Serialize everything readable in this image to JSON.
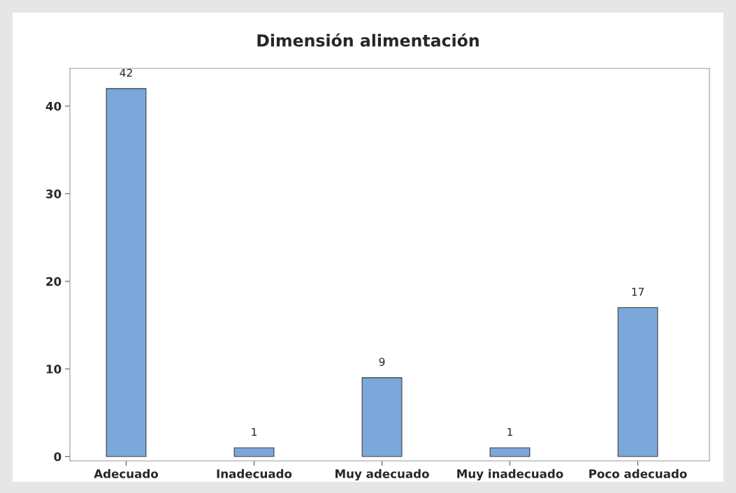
{
  "chart_data": {
    "type": "bar",
    "title": "Dimensión alimentación",
    "categories": [
      "Adecuado",
      "Inadecuado",
      "Muy adecuado",
      "Muy inadecuado",
      "Poco adecuado"
    ],
    "values": [
      42,
      1,
      9,
      1,
      17
    ],
    "color": "#7ba7da",
    "ylim": [
      -0.5,
      44.3
    ],
    "yticks": [
      0,
      10,
      20,
      30,
      40
    ],
    "data_labels": true,
    "grid": false,
    "legend": false
  }
}
